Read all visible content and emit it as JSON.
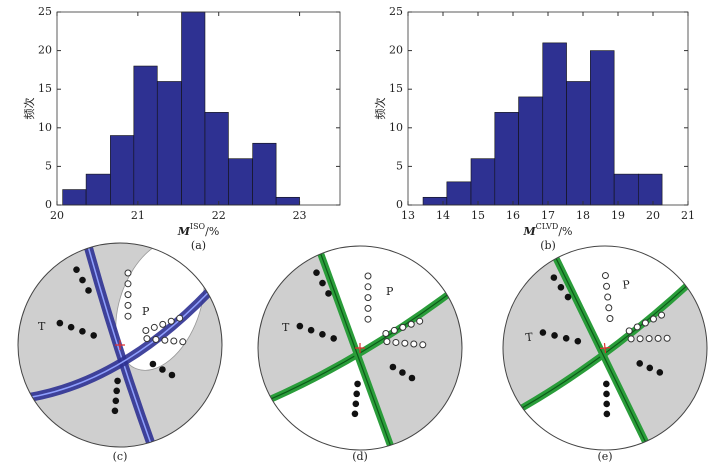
{
  "chart_data": [
    {
      "type": "histogram",
      "color": "#2e3192",
      "bins": [
        20.07,
        20.36,
        20.66,
        20.95,
        21.24,
        21.54,
        21.83,
        22.12,
        22.42,
        22.71,
        23.0
      ],
      "values": [
        2,
        4,
        9,
        18,
        16,
        25,
        12,
        6,
        8,
        1
      ],
      "xlim": [
        20,
        23.5
      ],
      "xticks": [
        20,
        21,
        22,
        23
      ],
      "ylim": [
        0,
        25
      ],
      "yticks": [
        0,
        5,
        10,
        15,
        20,
        25
      ],
      "y_label": "频次",
      "x_label": {
        "symbol": "M",
        "superscript": "ISO",
        "suffix": "/%"
      },
      "caption": "(a)"
    },
    {
      "type": "histogram",
      "color": "#2e3192",
      "bins": [
        13.43,
        14.11,
        14.8,
        15.48,
        16.16,
        16.85,
        17.53,
        18.21,
        18.89,
        19.58,
        20.26
      ],
      "values": [
        1,
        3,
        6,
        12,
        14,
        21,
        16,
        20,
        4,
        4
      ],
      "xlim": [
        13,
        21
      ],
      "xticks": [
        13,
        14,
        15,
        16,
        17,
        18,
        19,
        20,
        21
      ],
      "ylim": [
        0,
        25
      ],
      "yticks": [
        0,
        5,
        10,
        15,
        20,
        25
      ],
      "y_label": "频次",
      "x_label": {
        "symbol": "M",
        "superscript": "CLVD",
        "suffix": "/%"
      },
      "caption": "(b)"
    }
  ],
  "diagrams": [
    {
      "p_label": "P",
      "t_label": "T",
      "caption": "(c)"
    },
    {
      "p_label": "P",
      "t_label": "T",
      "caption": "(d)"
    },
    {
      "p_label": "P",
      "t_label": "T",
      "caption": "(e)"
    }
  ]
}
